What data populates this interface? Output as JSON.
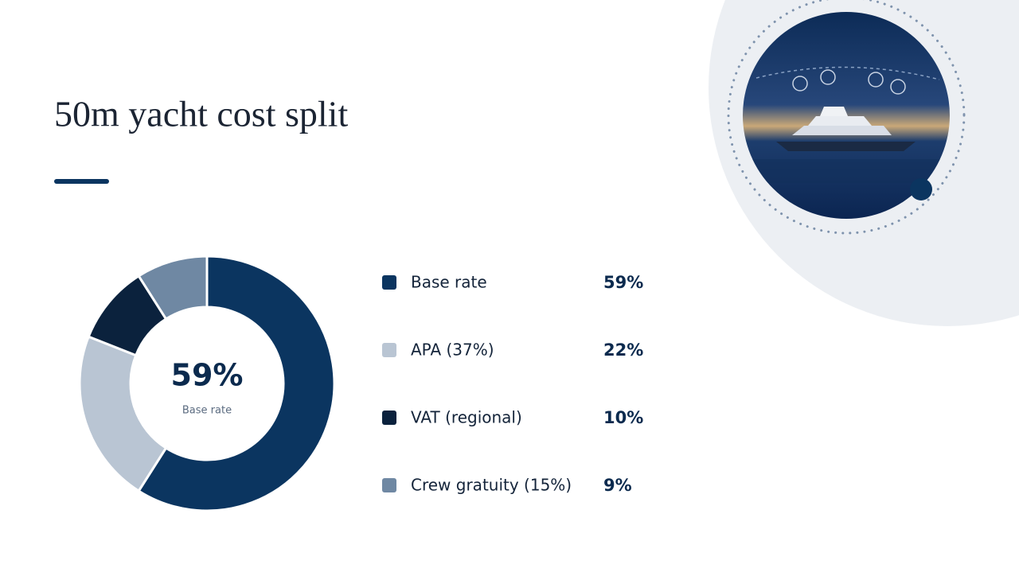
{
  "chart_data": {
    "type": "pie",
    "title": "50m yacht cost split",
    "categories": [
      "Base rate",
      "APA (37%)",
      "VAT (regional)",
      "Crew gratuity (15%)"
    ],
    "values": [
      59,
      22,
      10,
      9
    ],
    "value_labels": [
      "59%",
      "22%",
      "10%",
      "9%"
    ],
    "colors": [
      "#0b3560",
      "#b9c5d3",
      "#0b223d",
      "#6f88a3"
    ]
  }
}
